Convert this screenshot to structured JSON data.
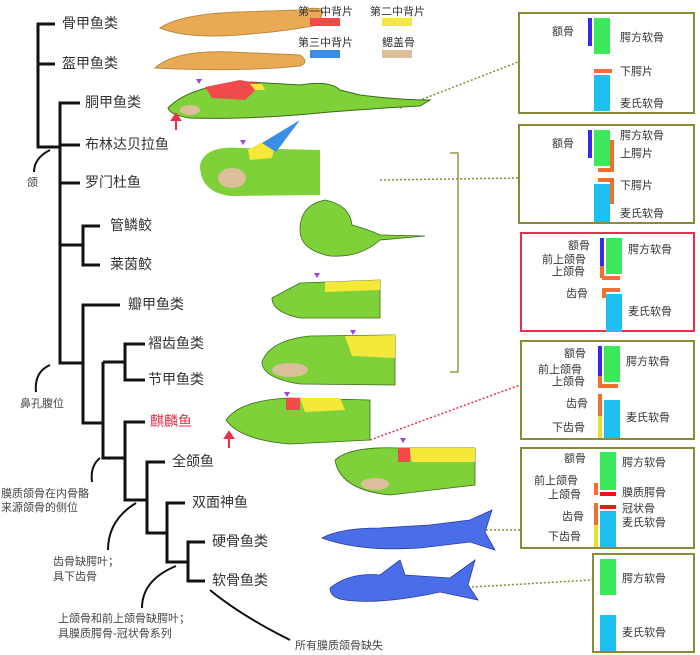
{
  "legend": [
    {
      "label": "第一中背片",
      "color": "#f04a4a"
    },
    {
      "label": "第二中背片",
      "color": "#f5e83a"
    },
    {
      "label": "第三中背片",
      "color": "#3a8ee8"
    },
    {
      "label": "鳃盖骨",
      "color": "#dcbf9a"
    }
  ],
  "taxa": [
    "骨甲鱼类",
    "盔甲鱼类",
    "胴甲鱼类",
    "布林达贝拉鱼",
    "罗门杜鱼",
    "管鳞鲛",
    "莱茵鲛",
    "瓣甲鱼类",
    "褶齿鱼类",
    "节甲鱼类",
    "麒麟鱼",
    "全颌鱼",
    "双面神鱼",
    "硬骨鱼类",
    "软骨鱼类"
  ],
  "highlight_color": "#e8304a",
  "nodes": {
    "jaw": "颌",
    "nostril": "鼻孔腹位",
    "dermal1": "膜质颌骨在内骨骼",
    "dermal2": "来源颌骨的侧位",
    "dentary1": "齿骨缺腭叶；",
    "dentary2": "具下齿骨",
    "maxilla1": "上颌骨和前上颌骨缺腭叶；",
    "maxilla2": "具膜质腭骨-冠状骨系列",
    "lost": "所有膜质颌骨缺失"
  },
  "boxes": [
    {
      "labels": [
        "额骨",
        "腭方软骨",
        "下腭片",
        "麦氏软骨"
      ]
    },
    {
      "labels": [
        "额骨",
        "腭方软骨",
        "上腭片",
        "下腭片",
        "麦氏软骨"
      ]
    },
    {
      "labels": [
        "额骨",
        "前上颌骨",
        "上颌骨",
        "齿骨",
        "腭方软骨",
        "麦氏软骨"
      ]
    },
    {
      "labels": [
        "额骨",
        "前上颌骨",
        "上颌骨",
        "齿骨",
        "下齿骨",
        "腭方软骨",
        "麦氏软骨"
      ]
    },
    {
      "labels": [
        "额骨",
        "前上颌骨",
        "上颌骨",
        "齿骨",
        "下齿骨",
        "腭方软骨",
        "膜质腭骨",
        "冠状骨",
        "麦氏软骨"
      ]
    },
    {
      "labels": [
        "腭方软骨",
        "麦氏软骨"
      ]
    }
  ]
}
